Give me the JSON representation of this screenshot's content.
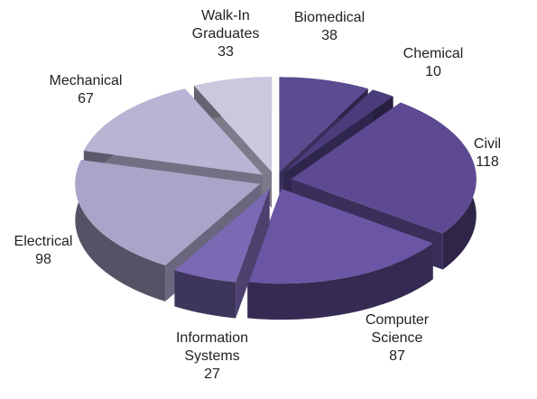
{
  "chart_data": {
    "type": "pie3d",
    "categories": [
      "Biomedical",
      "Chemical",
      "Civil",
      "Computer Science",
      "Information Systems",
      "Electrical",
      "Mechanical",
      "Walk-In Graduates"
    ],
    "values": [
      38,
      10,
      118,
      87,
      27,
      98,
      67,
      33
    ],
    "colors": [
      "#5b4b91",
      "#4b3d7c",
      "#5d4a92",
      "#6a56a4",
      "#7a69b3",
      "#aaa4c9",
      "#b8b4d4",
      "#cac7df"
    ]
  }
}
